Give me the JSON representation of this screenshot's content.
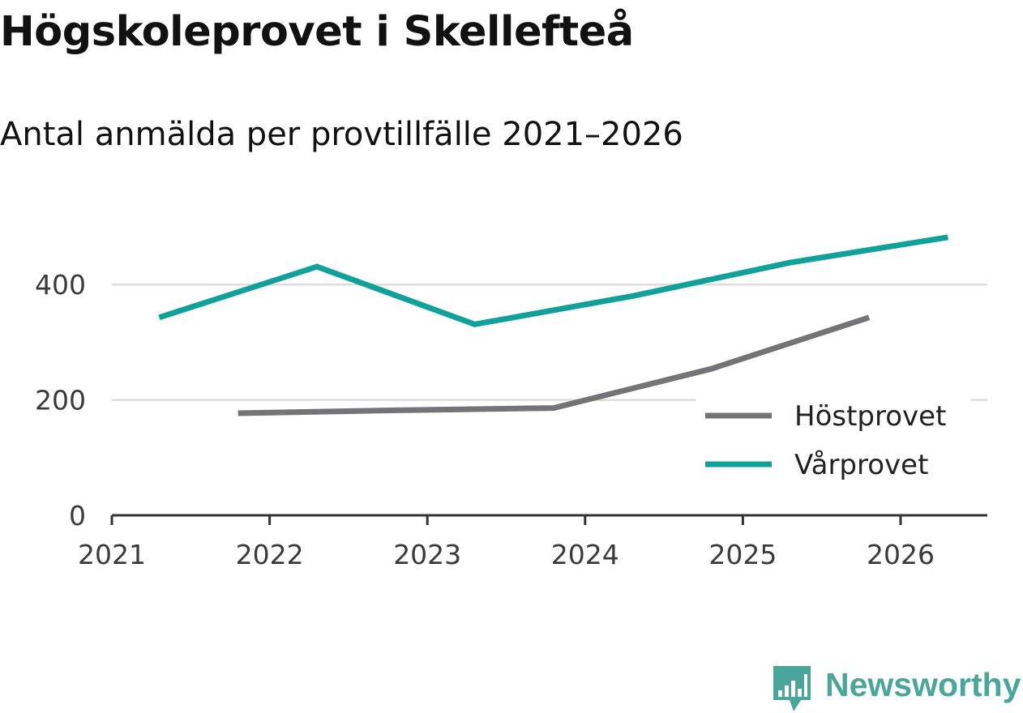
{
  "title": "Högskoleprovet i Skellefteå",
  "subtitle": "Antal anmälda per provtillfälle 2021–2026",
  "brand": {
    "name": "Newsworthy",
    "icon": "newsworthy-logo-icon",
    "color": "#4aa59a"
  },
  "chart_data": {
    "type": "line",
    "title": "Högskoleprovet i Skellefteå",
    "subtitle": "Antal anmälda per provtillfälle 2021–2026",
    "xlabel": "",
    "ylabel": "",
    "xlim": [
      2021,
      2026.55
    ],
    "ylim": [
      0,
      500
    ],
    "x_ticks": [
      "2021",
      "2022",
      "2023",
      "2024",
      "2025",
      "2026"
    ],
    "y_ticks": [
      "0",
      "200",
      "400"
    ],
    "grid": true,
    "legend_position": "bottom-right",
    "series": [
      {
        "name": "Höstprovet",
        "color": "#747377",
        "points": [
          {
            "x": 2021.8,
            "y": 177
          },
          {
            "x": 2022.8,
            "y": 182
          },
          {
            "x": 2023.8,
            "y": 186
          },
          {
            "x": 2024.8,
            "y": 254
          },
          {
            "x": 2025.8,
            "y": 343
          }
        ]
      },
      {
        "name": "Vårprovet",
        "color": "#11a09a",
        "points": [
          {
            "x": 2021.3,
            "y": 343
          },
          {
            "x": 2022.3,
            "y": 431
          },
          {
            "x": 2023.3,
            "y": 331
          },
          {
            "x": 2024.3,
            "y": 380
          },
          {
            "x": 2025.3,
            "y": 438
          },
          {
            "x": 2026.3,
            "y": 482
          }
        ]
      }
    ]
  }
}
